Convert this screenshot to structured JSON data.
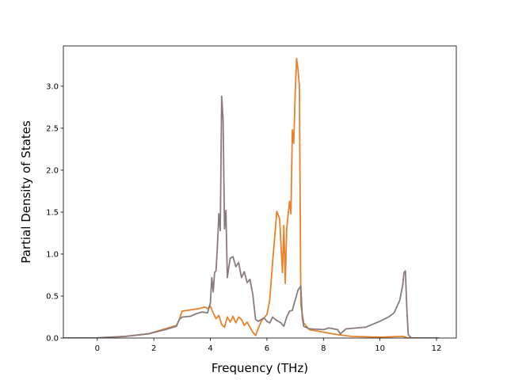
{
  "chart_data": {
    "type": "line",
    "title": "",
    "xlabel": "Frequency (THz)",
    "ylabel": "Partial Density of States",
    "xlim": [
      -1.2,
      12.7
    ],
    "ylim": [
      0.0,
      3.48
    ],
    "xticks": [
      0,
      2,
      4,
      6,
      8,
      10,
      12
    ],
    "yticks": [
      0.0,
      0.5,
      1.0,
      1.5,
      2.0,
      2.5,
      3.0
    ],
    "xtick_labels": [
      "0",
      "2",
      "4",
      "6",
      "8",
      "10",
      "12"
    ],
    "ytick_labels": [
      "0.0",
      "0.5",
      "1.0",
      "1.5",
      "2.0",
      "2.5",
      "3.0"
    ],
    "grid": false,
    "legend": false,
    "series": [
      {
        "color": "#e8822a",
        "points": [
          [
            -1.2,
            0
          ],
          [
            0.0,
            0.002
          ],
          [
            1.0,
            0.02
          ],
          [
            1.8,
            0.05
          ],
          [
            2.4,
            0.11
          ],
          [
            2.8,
            0.15
          ],
          [
            2.9,
            0.22
          ],
          [
            3.0,
            0.32
          ],
          [
            3.2,
            0.33
          ],
          [
            3.4,
            0.34
          ],
          [
            3.6,
            0.35
          ],
          [
            3.8,
            0.37
          ],
          [
            3.9,
            0.35
          ],
          [
            4.0,
            0.38
          ],
          [
            4.1,
            0.3
          ],
          [
            4.2,
            0.23
          ],
          [
            4.3,
            0.27
          ],
          [
            4.4,
            0.16
          ],
          [
            4.5,
            0.13
          ],
          [
            4.6,
            0.25
          ],
          [
            4.7,
            0.19
          ],
          [
            4.8,
            0.26
          ],
          [
            4.9,
            0.18
          ],
          [
            5.0,
            0.25
          ],
          [
            5.1,
            0.22
          ],
          [
            5.2,
            0.15
          ],
          [
            5.3,
            0.19
          ],
          [
            5.4,
            0.13
          ],
          [
            5.5,
            0.07
          ],
          [
            5.6,
            0.03
          ],
          [
            5.7,
            0.12
          ],
          [
            5.8,
            0.2
          ],
          [
            6.0,
            0.28
          ],
          [
            6.1,
            0.45
          ],
          [
            6.2,
            0.9
          ],
          [
            6.3,
            1.3
          ],
          [
            6.35,
            1.51
          ],
          [
            6.45,
            1.42
          ],
          [
            6.5,
            1.1
          ],
          [
            6.55,
            0.78
          ],
          [
            6.6,
            1.34
          ],
          [
            6.65,
            0.65
          ],
          [
            6.7,
            1.3
          ],
          [
            6.8,
            1.63
          ],
          [
            6.85,
            1.48
          ],
          [
            6.9,
            2.48
          ],
          [
            6.95,
            2.32
          ],
          [
            7.0,
            2.9
          ],
          [
            7.05,
            3.33
          ],
          [
            7.1,
            3.2
          ],
          [
            7.15,
            3.0
          ],
          [
            7.2,
            0.4
          ],
          [
            7.3,
            0.18
          ],
          [
            7.5,
            0.1
          ],
          [
            8.0,
            0.07
          ],
          [
            8.5,
            0.04
          ],
          [
            9.0,
            0.02
          ],
          [
            10.0,
            0.01
          ],
          [
            10.8,
            0.02
          ],
          [
            11.0,
            0.0
          ],
          [
            12.1,
            0.0
          ]
        ]
      },
      {
        "color": "#8a7a7d",
        "points": [
          [
            -1.2,
            0
          ],
          [
            0.0,
            0.002
          ],
          [
            1.0,
            0.02
          ],
          [
            1.8,
            0.05
          ],
          [
            2.4,
            0.1
          ],
          [
            2.8,
            0.14
          ],
          [
            2.9,
            0.22
          ],
          [
            3.0,
            0.25
          ],
          [
            3.3,
            0.26
          ],
          [
            3.5,
            0.29
          ],
          [
            3.7,
            0.31
          ],
          [
            3.9,
            0.3
          ],
          [
            4.0,
            0.42
          ],
          [
            4.05,
            0.72
          ],
          [
            4.1,
            0.55
          ],
          [
            4.15,
            0.78
          ],
          [
            4.2,
            0.8
          ],
          [
            4.25,
            1.1
          ],
          [
            4.3,
            1.48
          ],
          [
            4.35,
            1.28
          ],
          [
            4.4,
            2.88
          ],
          [
            4.45,
            2.6
          ],
          [
            4.5,
            1.3
          ],
          [
            4.55,
            1.52
          ],
          [
            4.6,
            0.72
          ],
          [
            4.7,
            0.95
          ],
          [
            4.8,
            0.97
          ],
          [
            4.9,
            0.85
          ],
          [
            5.0,
            0.9
          ],
          [
            5.1,
            0.72
          ],
          [
            5.2,
            0.79
          ],
          [
            5.3,
            0.66
          ],
          [
            5.4,
            0.7
          ],
          [
            5.5,
            0.52
          ],
          [
            5.6,
            0.22
          ],
          [
            5.7,
            0.2
          ],
          [
            5.8,
            0.22
          ],
          [
            5.9,
            0.24
          ],
          [
            6.0,
            0.2
          ],
          [
            6.1,
            0.18
          ],
          [
            6.2,
            0.25
          ],
          [
            6.3,
            0.22
          ],
          [
            6.4,
            0.2
          ],
          [
            6.5,
            0.18
          ],
          [
            6.6,
            0.14
          ],
          [
            6.7,
            0.25
          ],
          [
            6.8,
            0.32
          ],
          [
            6.9,
            0.33
          ],
          [
            7.0,
            0.45
          ],
          [
            7.1,
            0.57
          ],
          [
            7.2,
            0.62
          ],
          [
            7.25,
            0.25
          ],
          [
            7.3,
            0.14
          ],
          [
            7.5,
            0.11
          ],
          [
            8.0,
            0.1
          ],
          [
            8.2,
            0.12
          ],
          [
            8.5,
            0.1
          ],
          [
            8.6,
            0.05
          ],
          [
            8.8,
            0.11
          ],
          [
            9.5,
            0.13
          ],
          [
            10.0,
            0.2
          ],
          [
            10.3,
            0.25
          ],
          [
            10.5,
            0.3
          ],
          [
            10.7,
            0.45
          ],
          [
            10.8,
            0.62
          ],
          [
            10.85,
            0.78
          ],
          [
            10.9,
            0.8
          ],
          [
            10.95,
            0.35
          ],
          [
            11.0,
            0.04
          ],
          [
            11.1,
            0.0
          ],
          [
            12.1,
            0.0
          ]
        ]
      }
    ]
  }
}
